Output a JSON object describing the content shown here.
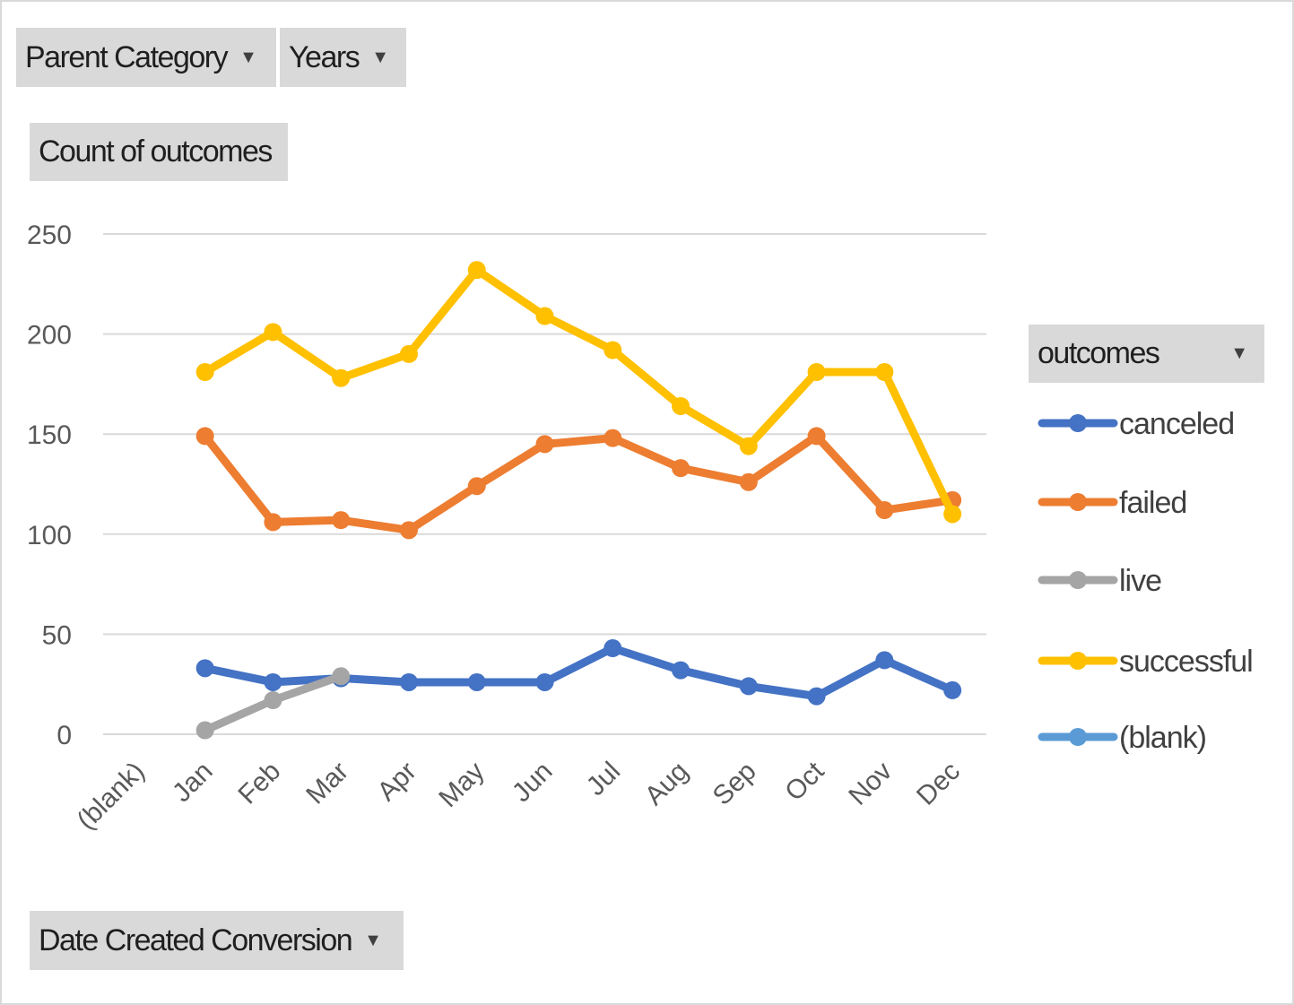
{
  "filters": {
    "parent_category": {
      "label": "Parent Category",
      "arrow": "▼"
    },
    "years": {
      "label": "Years",
      "arrow": "▼"
    },
    "values_field": {
      "label": "Count of outcomes"
    },
    "axis_field": {
      "label": "Date Created Conversion",
      "arrow": "▼"
    },
    "legend_field": {
      "label": "outcomes",
      "arrow": "▼"
    }
  },
  "chart_data": {
    "type": "line",
    "title": "",
    "xlabel": "",
    "ylabel": "",
    "categories": [
      "(blank)",
      "Jan",
      "Feb",
      "Mar",
      "Apr",
      "May",
      "Jun",
      "Jul",
      "Aug",
      "Sep",
      "Oct",
      "Nov",
      "Dec"
    ],
    "ylim": [
      0,
      250
    ],
    "yticks": [
      0,
      50,
      100,
      150,
      200,
      250
    ],
    "grid": true,
    "legend_position": "right",
    "series": [
      {
        "name": "canceled",
        "color": "#4472c4",
        "values": [
          null,
          33,
          26,
          28,
          26,
          26,
          26,
          43,
          32,
          24,
          19,
          37,
          22
        ]
      },
      {
        "name": "failed",
        "color": "#ed7d31",
        "values": [
          null,
          149,
          106,
          107,
          102,
          124,
          145,
          148,
          133,
          126,
          149,
          112,
          117
        ]
      },
      {
        "name": "live",
        "color": "#a5a5a5",
        "values": [
          null,
          2,
          17,
          29,
          null,
          null,
          null,
          null,
          null,
          null,
          null,
          null,
          null
        ]
      },
      {
        "name": "successful",
        "color": "#ffc000",
        "values": [
          null,
          181,
          201,
          178,
          190,
          232,
          209,
          192,
          164,
          144,
          181,
          181,
          110
        ]
      },
      {
        "name": "(blank)",
        "color": "#5b9bd5",
        "values": [
          null,
          null,
          null,
          null,
          null,
          null,
          null,
          null,
          null,
          null,
          null,
          null,
          null
        ]
      }
    ]
  }
}
